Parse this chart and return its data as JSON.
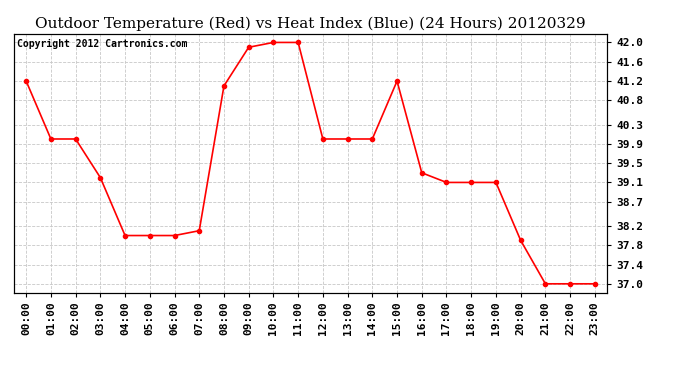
{
  "title": "Outdoor Temperature (Red) vs Heat Index (Blue) (24 Hours) 20120329",
  "copyright": "Copyright 2012 Cartronics.com",
  "x_labels": [
    "00:00",
    "01:00",
    "02:00",
    "03:00",
    "04:00",
    "05:00",
    "06:00",
    "07:00",
    "08:00",
    "09:00",
    "10:00",
    "11:00",
    "12:00",
    "13:00",
    "14:00",
    "15:00",
    "16:00",
    "17:00",
    "18:00",
    "19:00",
    "20:00",
    "21:00",
    "22:00",
    "23:00"
  ],
  "temp_values": [
    41.2,
    40.0,
    40.0,
    39.2,
    38.0,
    38.0,
    38.0,
    38.1,
    41.1,
    41.9,
    42.0,
    42.0,
    40.0,
    40.0,
    40.0,
    41.2,
    39.3,
    39.1,
    39.1,
    39.1,
    37.9,
    37.0,
    37.0,
    37.0
  ],
  "ylim_min": 36.82,
  "ylim_max": 42.18,
  "yticks": [
    37.0,
    37.4,
    37.8,
    38.2,
    38.7,
    39.1,
    39.5,
    39.9,
    40.3,
    40.8,
    41.2,
    41.6,
    42.0
  ],
  "ytick_labels": [
    "37.0",
    "37.4",
    "37.8",
    "38.2",
    "38.7",
    "39.1",
    "39.5",
    "39.9",
    "40.3",
    "40.8",
    "41.2",
    "41.6",
    "42.0"
  ],
  "line_color": "#ff0000",
  "marker": "o",
  "marker_size": 3,
  "background_color": "#ffffff",
  "grid_color": "#c8c8c8",
  "title_fontsize": 11,
  "tick_fontsize": 8,
  "copyright_fontsize": 7
}
